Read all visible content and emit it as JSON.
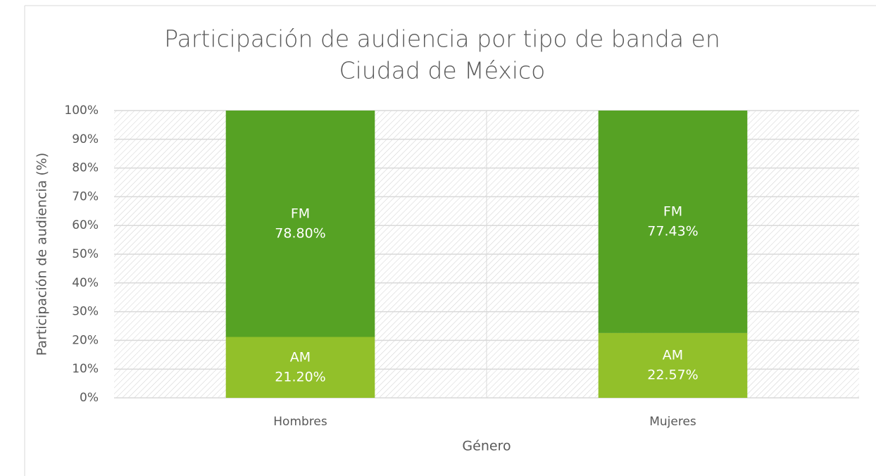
{
  "chart_data": {
    "type": "stacked_bar",
    "title": [
      "Participación de audiencia por tipo de banda en",
      "Ciudad de México"
    ],
    "x_label": "Género",
    "y_label": "Participación de audiencia (%)",
    "categories": [
      "Hombres",
      "Mujeres"
    ],
    "series": [
      {
        "name": "AM",
        "color": "#92c02a",
        "values": [
          21.2,
          22.57
        ],
        "value_labels": [
          "21.20%",
          "22.57%"
        ]
      },
      {
        "name": "FM",
        "color": "#56a224",
        "values": [
          78.8,
          77.43
        ],
        "value_labels": [
          "78.80%",
          "77.43%"
        ]
      }
    ],
    "ylim": [
      0,
      100
    ],
    "yticks": [
      {
        "value": 0,
        "label": "0%"
      },
      {
        "value": 10,
        "label": "10%"
      },
      {
        "value": 20,
        "label": "20%"
      },
      {
        "value": 30,
        "label": "30%"
      },
      {
        "value": 40,
        "label": "40%"
      },
      {
        "value": 50,
        "label": "50%"
      },
      {
        "value": 60,
        "label": "60%"
      },
      {
        "value": 70,
        "label": "70%"
      },
      {
        "value": 80,
        "label": "80%"
      },
      {
        "value": 90,
        "label": "90%"
      },
      {
        "value": 100,
        "label": "100%"
      }
    ],
    "grid": true
  }
}
